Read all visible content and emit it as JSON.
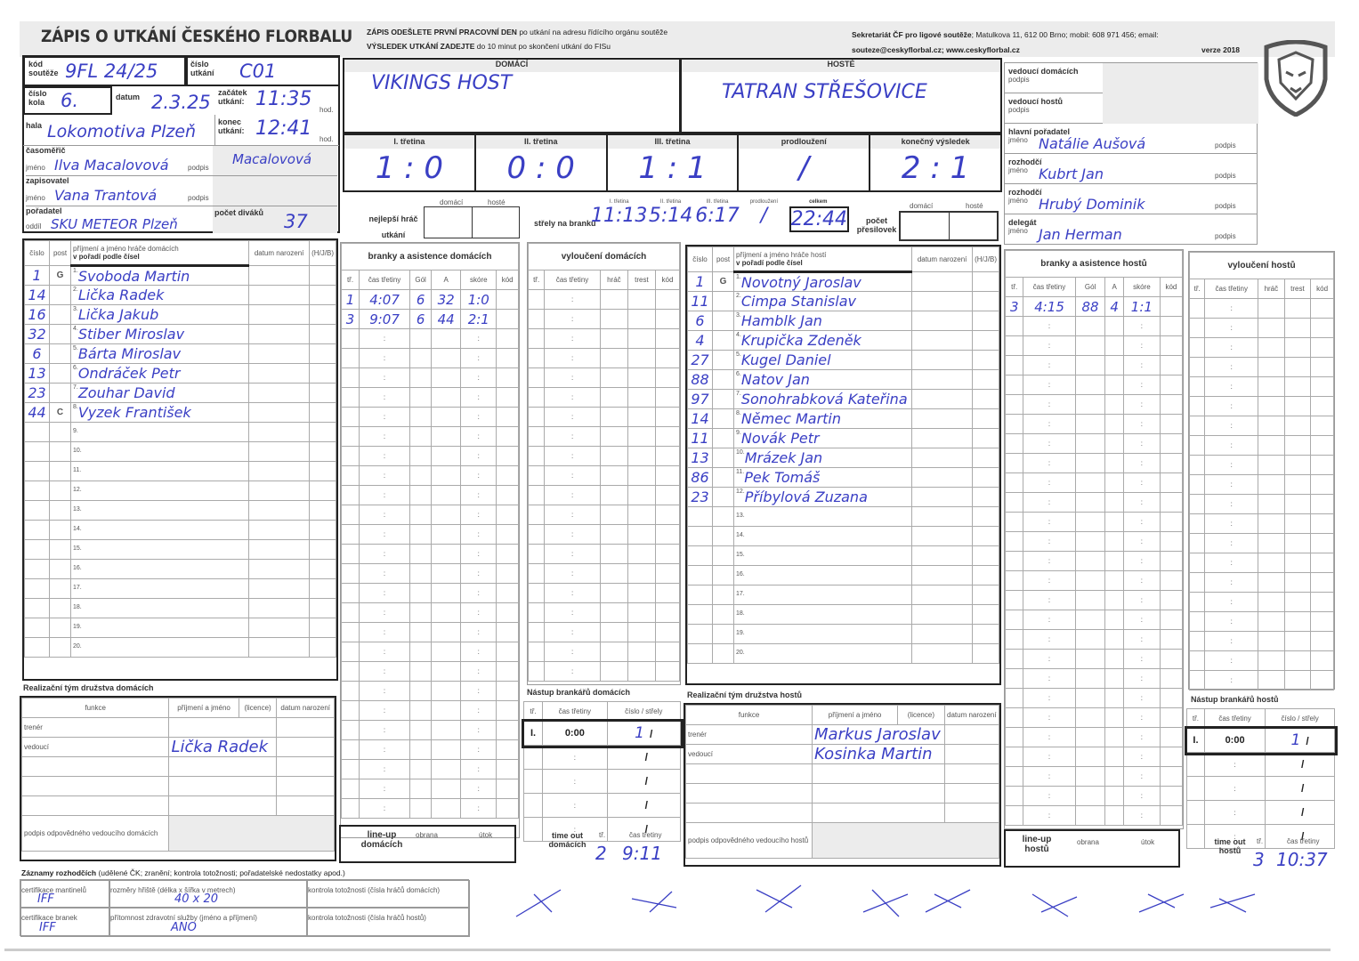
{
  "header": {
    "title": "ZÁPIS O UTKÁNÍ ČESKÉHO FLORBALU",
    "notice1_bold": "ZÁPIS ODEŠLETE PRVNÍ PRACOVNÍ DEN",
    "notice1_rest": "po utkání na adresu řídícího orgánu soutěže",
    "notice2_bold": "VÝSLEDEK UTKÁNÍ ZADEJTE",
    "notice2_rest": "do 10 minut po skončení utkání do FISu",
    "secretariat_bold": "Sekretariát ČF pro ligové soutěže",
    "secretariat_rest": "; Matulkova 11, 612 00 Brno; mobil: 608 971 456; email:",
    "contact": "souteze@ceskyflorbal.cz; www.ceskyflorbal.cz",
    "version": "verze 2018",
    "logo": "lion-head-shield"
  },
  "match": {
    "kod_label": "kód soutěže",
    "kod": "9FL 24/25",
    "cislo_utkani_label": "číslo utkání",
    "cislo_utkani": "C01",
    "kolo_label": "číslo kola",
    "kolo": "6.",
    "datum_label": "datum",
    "datum": "2.3.25",
    "zacatek_label": "začátek utkání:",
    "zacatek": "11:35",
    "hod": "hod.",
    "hala_label": "hala",
    "hala": "Lokomotiva Plzeň",
    "konec_label": "konec utkání:",
    "konec": "12:41",
    "casomeric_label": "časoměřič",
    "jmeno": "jméno",
    "podpis": "podpis",
    "casomeric": "Ilva Macalovová",
    "casomeric_podpis": "Macalovová",
    "zapisovatel_label": "zapisovatel",
    "zapisovatel": "Vana Trantová",
    "poradatel_label": "pořadatel",
    "oddil": "oddíl",
    "poradatel": "SKU METEOR Plzeň",
    "divaci_label": "počet diváků",
    "divaci": "37"
  },
  "teams": {
    "home_label": "DOMÁCÍ",
    "home": "VIKINGS HOST",
    "away_label": "HOSTÉ",
    "away": "TATRAN STŘEŠOVICE"
  },
  "periods": [
    {
      "label": "I. třetina",
      "score": "1 : 0"
    },
    {
      "label": "II. třetina",
      "score": "0 : 0"
    },
    {
      "label": "III. třetina",
      "score": "1 : 1"
    },
    {
      "label": "prodloužení",
      "score": "/"
    },
    {
      "label": "konečný výsledek",
      "score": "2 : 1"
    }
  ],
  "stats": {
    "best_label": "nejlepší hráč utkání",
    "domaci": "domácí",
    "hoste": "hosté",
    "shots_label": "střely na branku",
    "shot_heads": [
      "I. třetina",
      "II. třetina",
      "III. třetina",
      "prodloužení",
      "celkem"
    ],
    "shots": [
      "11:13",
      "5:14",
      "6:17",
      "/",
      "22:44"
    ],
    "penalties_label": "počet přesilovek"
  },
  "officials": [
    {
      "label": "vedoucí domácích",
      "sub": "podpis",
      "value": ""
    },
    {
      "label": "vedoucí hostů",
      "sub": "podpis",
      "value": ""
    },
    {
      "label": "hlavní pořadatel",
      "sub": "jméno",
      "value": "Natálie Aušová"
    },
    {
      "label": "rozhodčí",
      "sub": "jméno",
      "value": "Kubrt Jan"
    },
    {
      "label": "rozhodčí",
      "sub": "jméno",
      "value": "Hrubý Dominik"
    },
    {
      "label": "delegát",
      "sub": "jméno",
      "value": "Jan Herman"
    }
  ],
  "roster_heads": {
    "cislo": "číslo",
    "post": "post",
    "home_name": "příjmení a jméno hráče domácích",
    "away_name": "příjmení a jméno hráče hostí",
    "order": "v pořadí podle čísel",
    "dob": "datum narození",
    "hjb": "(H/J/B)"
  },
  "home_players": [
    [
      "1",
      "G",
      "Svoboda Martin"
    ],
    [
      "14",
      "",
      "Lička Radek"
    ],
    [
      "16",
      "",
      "Lička Jakub"
    ],
    [
      "32",
      "",
      "Stiber Miroslav"
    ],
    [
      "6",
      "",
      "Bárta Miroslav"
    ],
    [
      "13",
      "",
      "Ondráček Petr"
    ],
    [
      "23",
      "",
      "Zouhar David"
    ],
    [
      "44",
      "C",
      "Vyzek František"
    ]
  ],
  "away_players": [
    [
      "1",
      "G",
      "Novotný Jaroslav"
    ],
    [
      "11",
      "",
      "Cimpa Stanislav"
    ],
    [
      "6",
      "",
      "Hamblk Jan"
    ],
    [
      "4",
      "",
      "Krupička Zdeněk"
    ],
    [
      "27",
      "",
      "Kugel Daniel"
    ],
    [
      "88",
      "",
      "Natov Jan"
    ],
    [
      "97",
      "",
      "Sonohrabková Kateřina"
    ],
    [
      "14",
      "",
      "Němec Martin"
    ],
    [
      "11",
      "",
      "Novák Petr"
    ],
    [
      "13",
      "",
      "Mrázek Jan"
    ],
    [
      "86",
      "",
      "Pek Tomáš"
    ],
    [
      "23",
      "",
      "Příbylová Zuzana"
    ]
  ],
  "goals_heads": {
    "home": "branky a asistence domácích",
    "away": "branky a asistence hostů",
    "cols": [
      "tř.",
      "čas třetiny",
      "Gól",
      "A",
      "skóre",
      "kód"
    ]
  },
  "home_goals": [
    [
      "1",
      "4:07",
      "6",
      "32",
      "1:0"
    ],
    [
      "3",
      "9:07",
      "6",
      "44",
      "2:1"
    ]
  ],
  "away_goals": [
    [
      "3",
      "4:15",
      "88",
      "4",
      "1:1"
    ]
  ],
  "excl_heads": {
    "home": "vyloučení domácích",
    "away": "vyloučení hostů",
    "cols": [
      "tř.",
      "čas třetiny",
      "hráč",
      "trest",
      "kód"
    ]
  },
  "staff": {
    "home_title": "Realizační tým družstva domácích",
    "away_title": "Realizační tým družstva hostů",
    "cols": [
      "funkce",
      "příjmení a jméno",
      "(licence)",
      "datum narození"
    ],
    "trener": "trenér",
    "vedouci": "vedoucí",
    "home_vedouci": "Lička Radek",
    "away_trener": "Markus Jaroslav",
    "away_vedouci": "Kosinka Martin",
    "home_sign": "podpis odpovědného vedoucího domácích",
    "away_sign": "podpis odpovědného vedoucího hostů"
  },
  "goalies": {
    "home_title": "Nástup brankářů domácích",
    "away_title": "Nástup brankářů hostů",
    "cols": [
      "tř.",
      "čas třetiny",
      "číslo / střely"
    ],
    "period": "I.",
    "time": "0:00",
    "home_no": "1",
    "away_no": "1"
  },
  "lineup": {
    "home": "line-up domácích",
    "away": "line-up hostů",
    "obrana": "obrana",
    "utok": "útok"
  },
  "timeout": {
    "home": "time out domácích",
    "away": "time out hostů",
    "tr": "tř.",
    "cas": "čas třetiny",
    "home_period": "2",
    "home_time": "9:11",
    "away_period": "3",
    "away_time": "10:37"
  },
  "records": {
    "title_bold": "Záznamy rozhodčích",
    "title_rest": "(udělené ČK; zranění; kontrola totožnosti; pořadatelské nedostatky apod.)",
    "mantinely": "certifikace mantinelů",
    "mantinely_v": "IFF",
    "rozmery": "rozměry hřiště (délka x šířka v metrech)",
    "rozmery_v": "40 x 20",
    "kt_home": "kontrola totožnosti (čísla hráčů domácích)",
    "branky": "certifikace branek",
    "branky_v": "IFF",
    "zdrav": "přítomnost zdravotní služby (jméno a příjmení)",
    "zdrav_v": "ANO",
    "kt_away": "kontrola totožnosti (čísla hráčů hostů)"
  },
  "colors": {
    "ink": "#3a3fc4",
    "form_gray": "#ececec"
  }
}
